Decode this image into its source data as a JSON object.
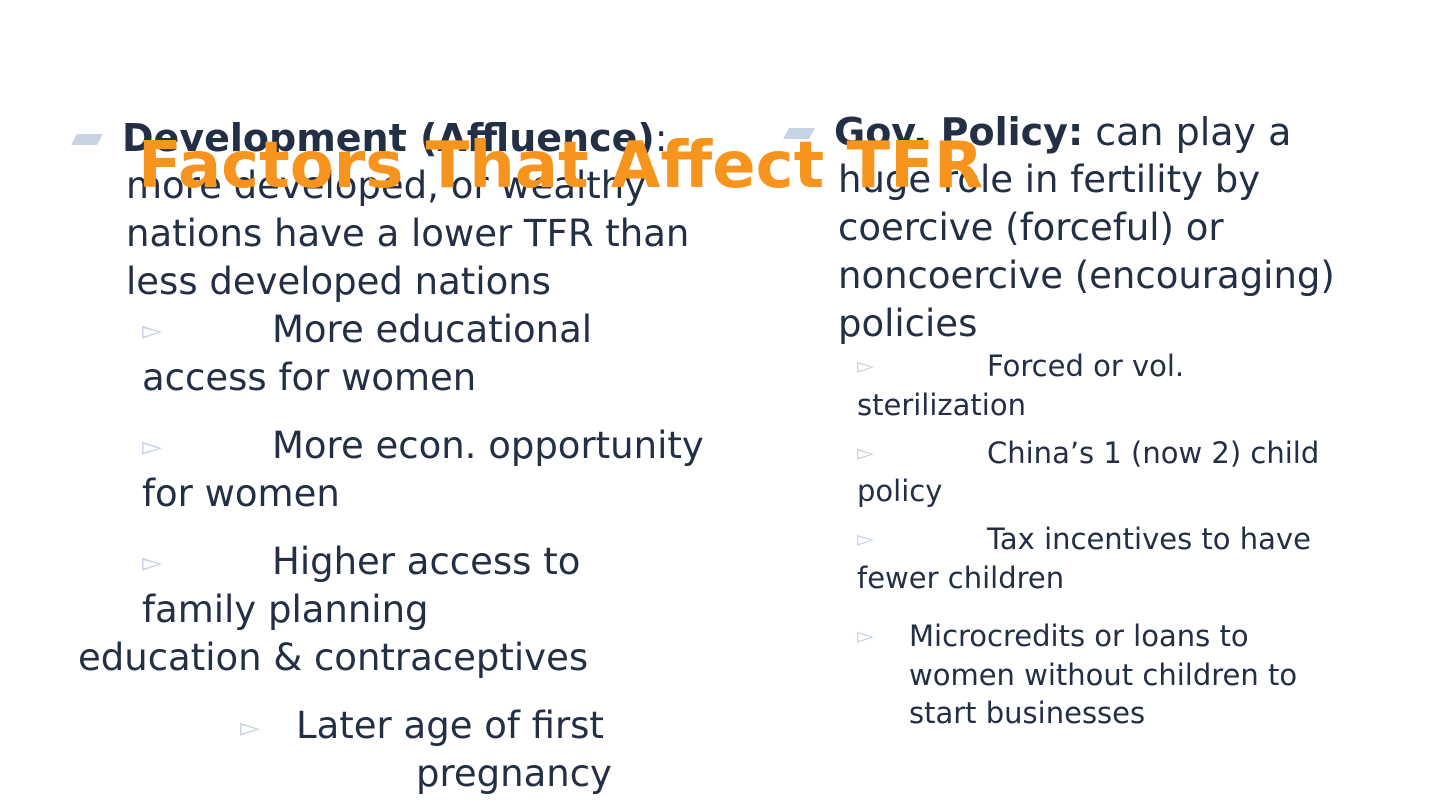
{
  "title": "Factors That Affect TFR",
  "left": {
    "heading": "Development (Affluence)",
    "heading_suffix": ":",
    "line1": "more developed, or wealthy",
    "line2": "nations have a lower TFR than",
    "line3": "less developed nations",
    "sub1": [
      "More educational",
      "access for women"
    ],
    "sub2": [
      "More econ. opportunity",
      "for women"
    ],
    "sub3": [
      "Higher access to",
      "family planning",
      "education & contraceptives"
    ],
    "sub4": [
      "Later age of first",
      "pregnancy"
    ]
  },
  "right": {
    "heading": "Gov. Policy:",
    "line0": "can play a",
    "line1": "huge role in fertility by",
    "line2": "coercive (forceful) or",
    "line3": "noncoercive (encouraging)",
    "line4": "policies",
    "sub1": [
      "Forced or vol.",
      "sterilization"
    ],
    "sub2": [
      "China’s 1 (now 2) child",
      "policy"
    ],
    "sub3": [
      "Tax incentives to have",
      "fewer children"
    ],
    "sub4": [
      "Microcredits or loans to",
      "women without children to",
      "start businesses"
    ]
  },
  "colors": {
    "title": "#f7941d",
    "text": "#232f45",
    "bullet": "#c8d3e4"
  },
  "icons": {
    "paragraph_bullet": "parallelogram",
    "sub_bullet": "open-right-triangle"
  }
}
